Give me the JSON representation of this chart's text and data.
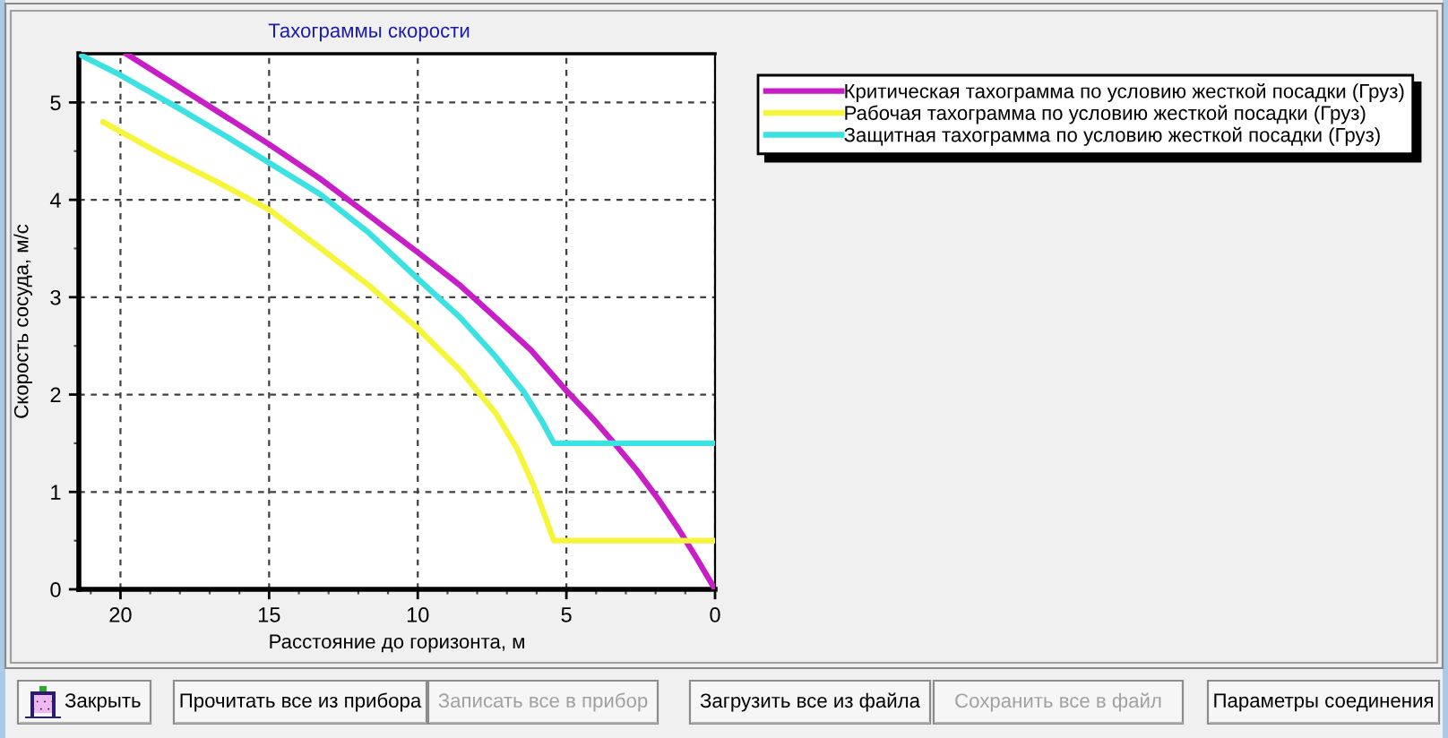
{
  "chart_data": {
    "type": "line",
    "title": "Тахограммы скорости",
    "xlabel": "Расстояние до горизонта, м",
    "ylabel": "Скорость сосуда, м/с",
    "xlim": [
      21.4,
      0
    ],
    "ylim": [
      0,
      5.5
    ],
    "xticks": [
      {
        "value": 21,
        "label": null
      },
      20,
      {
        "value": 19,
        "label": null
      },
      {
        "value": 18,
        "label": null
      },
      {
        "value": 17,
        "label": null
      },
      {
        "value": 16,
        "label": null
      },
      15,
      {
        "value": 14,
        "label": null
      },
      {
        "value": 13,
        "label": null
      },
      {
        "value": 12,
        "label": null
      },
      {
        "value": 11,
        "label": null
      },
      10,
      {
        "value": 9,
        "label": null
      },
      {
        "value": 8,
        "label": null
      },
      {
        "value": 7,
        "label": null
      },
      {
        "value": 6,
        "label": null
      },
      5,
      {
        "value": 4,
        "label": null
      },
      {
        "value": 3,
        "label": null
      },
      {
        "value": 2,
        "label": null
      },
      {
        "value": 1,
        "label": null
      },
      0
    ],
    "yticks": [
      0,
      {
        "value": 0.5,
        "label": null
      },
      1,
      {
        "value": 1.5,
        "label": null
      },
      2,
      {
        "value": 2.5,
        "label": null
      },
      3,
      {
        "value": 3.5,
        "label": null
      },
      4,
      {
        "value": 4.5,
        "label": null
      },
      5
    ],
    "grid": true,
    "legend": "top right",
    "line_style": "solid",
    "series": [
      {
        "name": "Критическая тахограмма по условию жесткой посадки (Груз)",
        "color": "#c81ec8",
        "x": [
          19.81,
          18.04,
          16.85,
          15.0,
          13.3,
          11.64,
          10.0,
          8.57,
          7.38,
          6.2,
          4.97,
          4.07,
          3.36,
          2.65,
          1.94,
          1.23,
          0.64,
          0
        ],
        "values": [
          5.5,
          5.16,
          4.93,
          4.57,
          4.22,
          3.84,
          3.46,
          3.12,
          2.79,
          2.46,
          2.03,
          1.74,
          1.49,
          1.23,
          0.94,
          0.62,
          0.33,
          0
        ]
      },
      {
        "name": "Рабочая тахограмма по условию жесткой посадки (Груз)",
        "color": "#f5f53c",
        "x": [
          20.59,
          18.75,
          16.85,
          15.0,
          13.3,
          11.64,
          10.0,
          8.57,
          7.38,
          6.67,
          6.08,
          5.78,
          5.42,
          0
        ],
        "values": [
          4.8,
          4.49,
          4.2,
          3.9,
          3.51,
          3.12,
          2.68,
          2.25,
          1.81,
          1.45,
          1.05,
          0.8,
          0.5,
          0.5
        ]
      },
      {
        "name": "Защитная тахограмма по условию жесткой посадки (Груз)",
        "color": "#3ce1e1",
        "x": [
          21.3,
          20.0,
          18.04,
          16.38,
          15.0,
          13.3,
          11.64,
          10.0,
          8.57,
          7.38,
          6.44,
          5.85,
          5.42,
          0
        ],
        "values": [
          5.48,
          5.28,
          4.94,
          4.64,
          4.38,
          4.06,
          3.66,
          3.19,
          2.79,
          2.39,
          2.03,
          1.74,
          1.5,
          1.5
        ]
      }
    ],
    "annotations": [
      "Закрыть",
      "Прочитать все из прибора",
      "Записать все в прибор",
      "Загрузить все из файла",
      "Сохранить все в файл",
      "Параметры соединения"
    ]
  }
}
